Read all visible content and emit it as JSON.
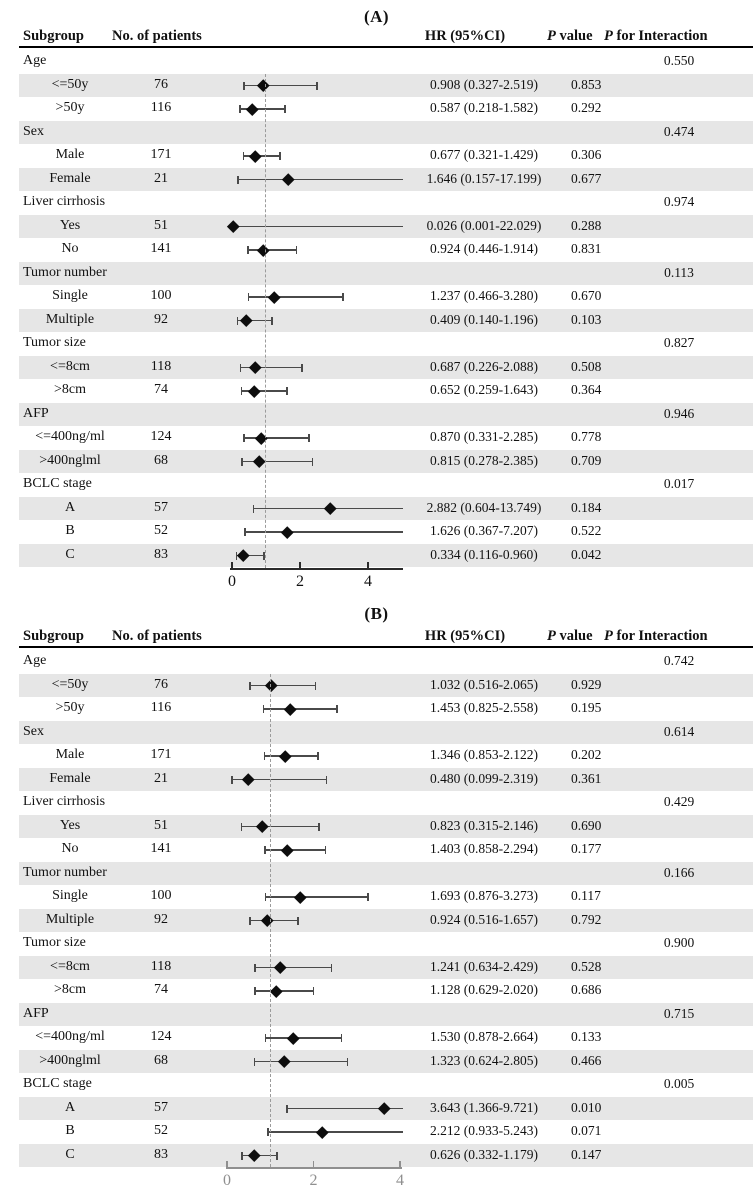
{
  "colors": {
    "stripe": "#e6e6e6",
    "text": "#111111",
    "ci_line": "#4a4a4a",
    "marker": "#0d0d0d",
    "reference_line": "#9b9b9b"
  },
  "chart_data": [
    {
      "type": "forest",
      "title": "(A)",
      "columns": {
        "subgroup": "Subgroup",
        "patients": "No. of patients",
        "hr": "HR (95%CI)",
        "p_italic": "P",
        "p_value_rest": " value",
        "p_interaction_rest": " for Interaction"
      },
      "axis": {
        "xlim": [
          0,
          5
        ],
        "ticks": [
          "0",
          "2",
          "4"
        ],
        "tick_values": [
          0,
          2,
          4
        ],
        "ref_line": 1,
        "line_color": "#2b2b2b",
        "label_color": "#111111"
      },
      "rows": [
        {
          "group": true,
          "label": "Age",
          "p_interaction": "0.550"
        },
        {
          "label": "<=50y",
          "patients": "76",
          "hr_ci": "0.908 (0.327-2.519)",
          "p_value": "0.853",
          "est": 0.908,
          "lo": 0.327,
          "hi": 2.519
        },
        {
          "label": ">50y",
          "patients": "116",
          "hr_ci": "0.587 (0.218-1.582)",
          "p_value": "0.292",
          "est": 0.587,
          "lo": 0.218,
          "hi": 1.582
        },
        {
          "group": true,
          "label": "Sex",
          "p_interaction": "0.474"
        },
        {
          "label": "Male",
          "patients": "171",
          "hr_ci": "0.677 (0.321-1.429)",
          "p_value": "0.306",
          "est": 0.677,
          "lo": 0.321,
          "hi": 1.429
        },
        {
          "label": "Female",
          "patients": "21",
          "hr_ci": "1.646 (0.157-17.199)",
          "p_value": "0.677",
          "est": 1.646,
          "lo": 0.157,
          "hi": 17.199
        },
        {
          "group": true,
          "label": "Liver cirrhosis",
          "p_interaction": "0.974"
        },
        {
          "label": "Yes",
          "patients": "51",
          "hr_ci": "0.026 (0.001-22.029)",
          "p_value": "0.288",
          "est": 0.026,
          "lo": 0.001,
          "hi": 22.029
        },
        {
          "label": "No",
          "patients": "141",
          "hr_ci": "0.924 (0.446-1.914)",
          "p_value": "0.831",
          "est": 0.924,
          "lo": 0.446,
          "hi": 1.914
        },
        {
          "group": true,
          "label": "Tumor number",
          "p_interaction": "0.113"
        },
        {
          "label": "Single",
          "patients": "100",
          "hr_ci": "1.237 (0.466-3.280)",
          "p_value": "0.670",
          "est": 1.237,
          "lo": 0.466,
          "hi": 3.28
        },
        {
          "label": "Multiple",
          "patients": "92",
          "hr_ci": "0.409 (0.140-1.196)",
          "p_value": "0.103",
          "est": 0.409,
          "lo": 0.14,
          "hi": 1.196
        },
        {
          "group": true,
          "label": "Tumor size",
          "p_interaction": "0.827"
        },
        {
          "label": "<=8cm",
          "patients": "118",
          "hr_ci": "0.687 (0.226-2.088)",
          "p_value": "0.508",
          "est": 0.687,
          "lo": 0.226,
          "hi": 2.088
        },
        {
          "label": ">8cm",
          "patients": "74",
          "hr_ci": "0.652 (0.259-1.643)",
          "p_value": "0.364",
          "est": 0.652,
          "lo": 0.259,
          "hi": 1.643
        },
        {
          "group": true,
          "label": "AFP",
          "p_interaction": "0.946"
        },
        {
          "label": "<=400ng/ml",
          "patients": "124",
          "hr_ci": "0.870 (0.331-2.285)",
          "p_value": "0.778",
          "est": 0.87,
          "lo": 0.331,
          "hi": 2.285
        },
        {
          "label": ">400nglml",
          "patients": "68",
          "hr_ci": "0.815 (0.278-2.385)",
          "p_value": "0.709",
          "est": 0.815,
          "lo": 0.278,
          "hi": 2.385
        },
        {
          "group": true,
          "label": "BCLC stage",
          "p_interaction": "0.017"
        },
        {
          "label": "A",
          "patients": "57",
          "hr_ci": "2.882 (0.604-13.749)",
          "p_value": "0.184",
          "est": 2.882,
          "lo": 0.604,
          "hi": 13.749
        },
        {
          "label": "B",
          "patients": "52",
          "hr_ci": "1.626 (0.367-7.207)",
          "p_value": "0.522",
          "est": 1.626,
          "lo": 0.367,
          "hi": 7.207
        },
        {
          "label": "C",
          "patients": "83",
          "hr_ci": "0.334 (0.116-0.960)",
          "p_value": "0.042",
          "est": 0.334,
          "lo": 0.116,
          "hi": 0.96
        }
      ]
    },
    {
      "type": "forest",
      "title": "(B)",
      "columns": {
        "subgroup": "Subgroup",
        "patients": "No. of patients",
        "hr": "HR (95%CI)",
        "p_italic": "P",
        "p_value_rest": " value",
        "p_interaction_rest": " for Interaction"
      },
      "axis": {
        "xlim": [
          0,
          4
        ],
        "ticks": [
          "0",
          "2",
          "4"
        ],
        "tick_values": [
          0,
          2,
          4
        ],
        "ref_line": 1,
        "line_color": "#8f8f8f",
        "label_color": "#8f8f8f"
      },
      "rows": [
        {
          "group": true,
          "label": "Age",
          "p_interaction": "0.742"
        },
        {
          "label": "<=50y",
          "patients": "76",
          "hr_ci": "1.032 (0.516-2.065)",
          "p_value": "0.929",
          "est": 1.032,
          "lo": 0.516,
          "hi": 2.065
        },
        {
          "label": ">50y",
          "patients": "116",
          "hr_ci": "1.453 (0.825-2.558)",
          "p_value": "0.195",
          "est": 1.453,
          "lo": 0.825,
          "hi": 2.558
        },
        {
          "group": true,
          "label": "Sex",
          "p_interaction": "0.614"
        },
        {
          "label": "Male",
          "patients": "171",
          "hr_ci": "1.346 (0.853-2.122)",
          "p_value": "0.202",
          "est": 1.346,
          "lo": 0.853,
          "hi": 2.122
        },
        {
          "label": "Female",
          "patients": "21",
          "hr_ci": "0.480 (0.099-2.319)",
          "p_value": "0.361",
          "est": 0.48,
          "lo": 0.099,
          "hi": 2.319
        },
        {
          "group": true,
          "label": "Liver cirrhosis",
          "p_interaction": "0.429"
        },
        {
          "label": "Yes",
          "patients": "51",
          "hr_ci": "0.823 (0.315-2.146)",
          "p_value": "0.690",
          "est": 0.823,
          "lo": 0.315,
          "hi": 2.146
        },
        {
          "label": "No",
          "patients": "141",
          "hr_ci": "1.403 (0.858-2.294)",
          "p_value": "0.177",
          "est": 1.403,
          "lo": 0.858,
          "hi": 2.294
        },
        {
          "group": true,
          "label": "Tumor number",
          "p_interaction": "0.166"
        },
        {
          "label": "Single",
          "patients": "100",
          "hr_ci": "1.693 (0.876-3.273)",
          "p_value": "0.117",
          "est": 1.693,
          "lo": 0.876,
          "hi": 3.273
        },
        {
          "label": "Multiple",
          "patients": "92",
          "hr_ci": "0.924 (0.516-1.657)",
          "p_value": "0.792",
          "est": 0.924,
          "lo": 0.516,
          "hi": 1.657
        },
        {
          "group": true,
          "label": "Tumor size",
          "p_interaction": "0.900"
        },
        {
          "label": "<=8cm",
          "patients": "118",
          "hr_ci": "1.241 (0.634-2.429)",
          "p_value": "0.528",
          "est": 1.241,
          "lo": 0.634,
          "hi": 2.429
        },
        {
          "label": ">8cm",
          "patients": "74",
          "hr_ci": "1.128 (0.629-2.020)",
          "p_value": "0.686",
          "est": 1.128,
          "lo": 0.629,
          "hi": 2.02
        },
        {
          "group": true,
          "label": "AFP",
          "p_interaction": "0.715"
        },
        {
          "label": "<=400ng/ml",
          "patients": "124",
          "hr_ci": "1.530 (0.878-2.664)",
          "p_value": "0.133",
          "est": 1.53,
          "lo": 0.878,
          "hi": 2.664
        },
        {
          "label": ">400nglml",
          "patients": "68",
          "hr_ci": "1.323 (0.624-2.805)",
          "p_value": "0.466",
          "est": 1.323,
          "lo": 0.624,
          "hi": 2.805
        },
        {
          "group": true,
          "label": "BCLC stage",
          "p_interaction": "0.005"
        },
        {
          "label": "A",
          "patients": "57",
          "hr_ci": "3.643 (1.366-9.721)",
          "p_value": "0.010",
          "est": 3.643,
          "lo": 1.366,
          "hi": 9.721
        },
        {
          "label": "B",
          "patients": "52",
          "hr_ci": "2.212 (0.933-5.243)",
          "p_value": "0.071",
          "est": 2.212,
          "lo": 0.933,
          "hi": 5.243
        },
        {
          "label": "C",
          "patients": "83",
          "hr_ci": "0.626 (0.332-1.179)",
          "p_value": "0.147",
          "est": 0.626,
          "lo": 0.332,
          "hi": 1.179
        }
      ]
    }
  ]
}
